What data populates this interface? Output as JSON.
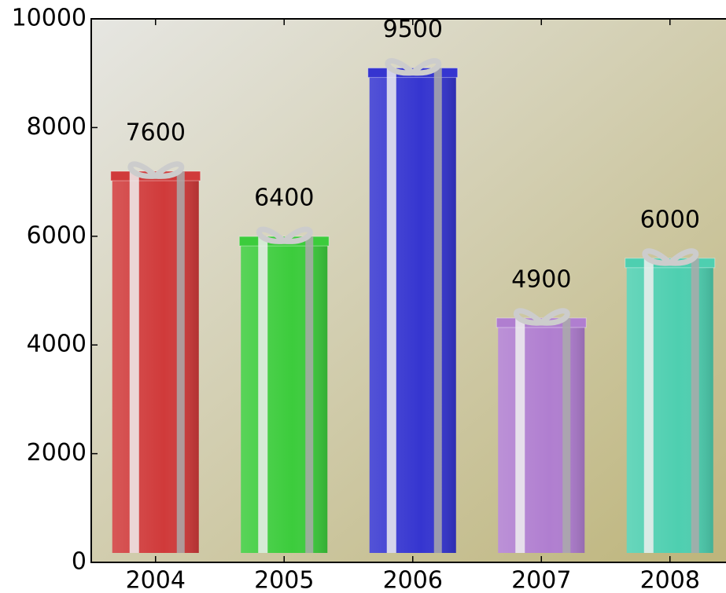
{
  "chart_data": {
    "type": "bar",
    "categories": [
      "2004",
      "2005",
      "2006",
      "2007",
      "2008"
    ],
    "values": [
      7600,
      6400,
      9500,
      4900,
      6000
    ],
    "colors": [
      "#d03a3a",
      "#3ccc3c",
      "#3535d0",
      "#b07ed0",
      "#4ecfb0"
    ],
    "ylim": [
      0,
      10000
    ],
    "yticks": [
      0,
      2000,
      4000,
      6000,
      8000,
      10000
    ]
  }
}
